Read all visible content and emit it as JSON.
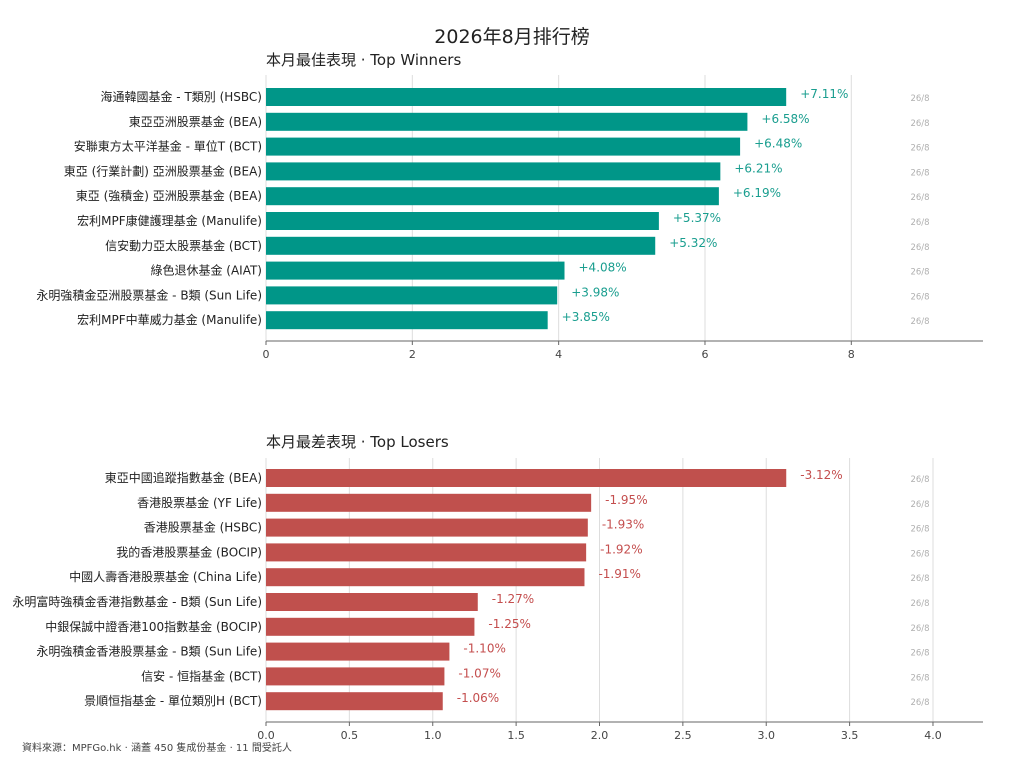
{
  "page": {
    "title": "2026年8月排行榜",
    "footer": "資料來源：MPFGo.hk · 涵蓋 450 隻成份基金 · 11 間受託人"
  },
  "colors": {
    "winners": "#009688",
    "losers": "#c0504d",
    "winners_text": "#1a9e8f",
    "losers_text": "#c44e4e",
    "grid": "#dddddd",
    "date_text": "#b0b0b0"
  },
  "chart_data": [
    {
      "type": "bar",
      "orientation": "horizontal",
      "title": "本月最佳表現 · Top Winners",
      "categories": [
        "海通韓國基金 - T類別 (HSBC)",
        "東亞亞洲股票基金 (BEA)",
        "安聯東方太平洋基金 - 單位T (BCT)",
        "東亞 (行業計劃) 亞洲股票基金 (BEA)",
        "東亞 (強積金) 亞洲股票基金 (BEA)",
        "宏利MPF康健護理基金 (Manulife)",
        "信安動力亞太股票基金 (BCT)",
        "綠色退休基金 (AIAT)",
        "永明強積金亞洲股票基金 - B類 (Sun Life)",
        "宏利MPF中華威力基金 (Manulife)"
      ],
      "values": [
        7.11,
        6.58,
        6.48,
        6.21,
        6.19,
        5.37,
        5.32,
        4.08,
        3.98,
        3.85
      ],
      "value_labels": [
        "+7.11%",
        "+6.58%",
        "+6.48%",
        "+6.21%",
        "+6.19%",
        "+5.37%",
        "+5.32%",
        "+4.08%",
        "+3.98%",
        "+3.85%"
      ],
      "dates": [
        "26/8",
        "26/8",
        "26/8",
        "26/8",
        "26/8",
        "26/8",
        "26/8",
        "26/8",
        "26/8",
        "26/8"
      ],
      "xlim": [
        0,
        9.8
      ],
      "xticks": [
        0,
        2,
        4,
        6,
        8
      ],
      "xtick_labels": [
        "0",
        "2",
        "4",
        "6",
        "8"
      ],
      "grid": true
    },
    {
      "type": "bar",
      "orientation": "horizontal",
      "title": "本月最差表現 · Top Losers",
      "categories": [
        "東亞中國追蹤指數基金 (BEA)",
        "香港股票基金 (YF Life)",
        "香港股票基金 (HSBC)",
        "我的香港股票基金 (BOCIP)",
        "中國人壽香港股票基金 (China Life)",
        "永明富時強積金香港指數基金 - B類 (Sun Life)",
        "中銀保誠中證香港100指數基金 (BOCIP)",
        "永明強積金香港股票基金 - B類 (Sun Life)",
        "信安 - 恒指基金 (BCT)",
        "景順恒指基金 - 單位類別H (BCT)"
      ],
      "values": [
        3.12,
        1.95,
        1.93,
        1.92,
        1.91,
        1.27,
        1.25,
        1.1,
        1.07,
        1.06
      ],
      "value_labels": [
        "-3.12%",
        "-1.95%",
        "-1.93%",
        "-1.92%",
        "-1.91%",
        "-1.27%",
        "-1.25%",
        "-1.10%",
        "-1.07%",
        "-1.06%"
      ],
      "dates": [
        "26/8",
        "26/8",
        "26/8",
        "26/8",
        "26/8",
        "26/8",
        "26/8",
        "26/8",
        "26/8",
        "26/8"
      ],
      "xlim": [
        0,
        4.3
      ],
      "xticks": [
        0,
        0.5,
        1,
        1.5,
        2,
        2.5,
        3,
        3.5,
        4
      ],
      "xtick_labels": [
        "0.0",
        "0.5",
        "1.0",
        "1.5",
        "2.0",
        "2.5",
        "3.0",
        "3.5",
        "4.0"
      ],
      "grid": true
    }
  ]
}
